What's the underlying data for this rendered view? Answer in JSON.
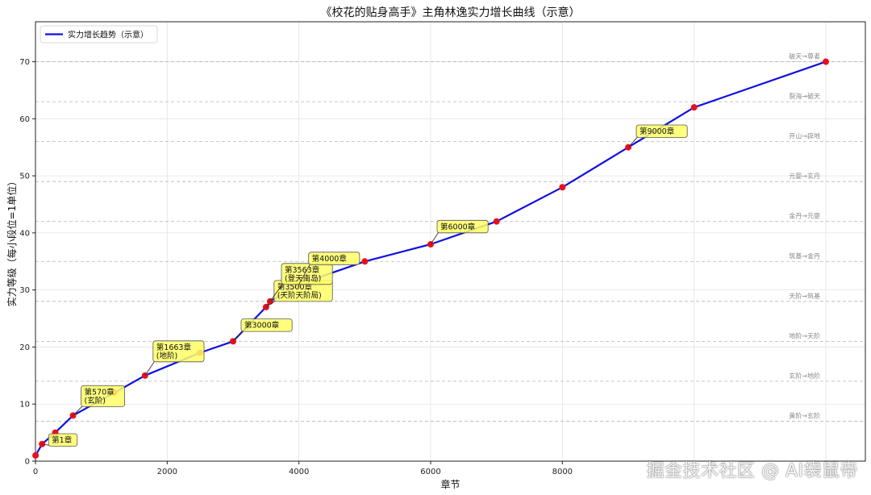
{
  "chart_data": {
    "type": "line",
    "title": "《校花的贴身高手》主角林逸实力增长曲线（示意）",
    "xlabel": "章节",
    "ylabel": "实力等级（每小段位=1单位）",
    "xlim": [
      0,
      12600
    ],
    "ylim": [
      0,
      77
    ],
    "xticks": [
      0,
      2000,
      4000,
      6000,
      8000
    ],
    "yticks": [
      0,
      10,
      20,
      30,
      40,
      50,
      60,
      70
    ],
    "grid": true,
    "legend": {
      "placement": "top-left",
      "entries": [
        "实力增长趋势（示意）"
      ]
    },
    "series": [
      {
        "name": "实力增长趋势（示意）",
        "color": "#1010e0",
        "marker_color": "#e8101a",
        "x": [
          1,
          100,
          300,
          570,
          1200,
          1663,
          2500,
          3000,
          3500,
          3563,
          4000,
          5000,
          6000,
          7000,
          8000,
          9000,
          10000,
          12000
        ],
        "y": [
          1,
          3,
          5,
          8,
          12,
          15,
          19,
          21,
          27,
          28,
          31,
          35,
          38,
          42,
          48,
          55,
          62,
          70
        ]
      }
    ],
    "thresholds": [
      {
        "y": 7,
        "label": "黄阶→玄阶"
      },
      {
        "y": 14,
        "label": "玄阶→地阶"
      },
      {
        "y": 21,
        "label": "地阶→天阶"
      },
      {
        "y": 28,
        "label": "天阶→筑基"
      },
      {
        "y": 35,
        "label": "筑基→金丹"
      },
      {
        "y": 42,
        "label": "金丹→元婴"
      },
      {
        "y": 49,
        "label": "元婴→玄丹"
      },
      {
        "y": 56,
        "label": "开山→辟地"
      },
      {
        "y": 63,
        "label": "裂海→破天"
      },
      {
        "y": 70,
        "label": "破天→尊者"
      }
    ],
    "annotations": [
      {
        "x": 100,
        "y": 3,
        "text": "第1章"
      },
      {
        "x": 570,
        "y": 8,
        "text": "第570章\n(玄阶)"
      },
      {
        "x": 1663,
        "y": 15,
        "text": "第1663章\n(地阶)"
      },
      {
        "x": 3000,
        "y": 21,
        "text": "第3000章"
      },
      {
        "x": 3500,
        "y": 27,
        "text": "第3500章\n(天阶天阶局)"
      },
      {
        "x": 3563,
        "y": 28,
        "text": "第3563章\n(登天南岛)"
      },
      {
        "x": 4000,
        "y": 31,
        "text": "第4000章"
      },
      {
        "x": 6000,
        "y": 38,
        "text": "第6000章"
      },
      {
        "x": 9000,
        "y": 55,
        "text": "第9000章"
      }
    ]
  },
  "watermark": "掘金技术社区 @ AI袋鼠帝"
}
